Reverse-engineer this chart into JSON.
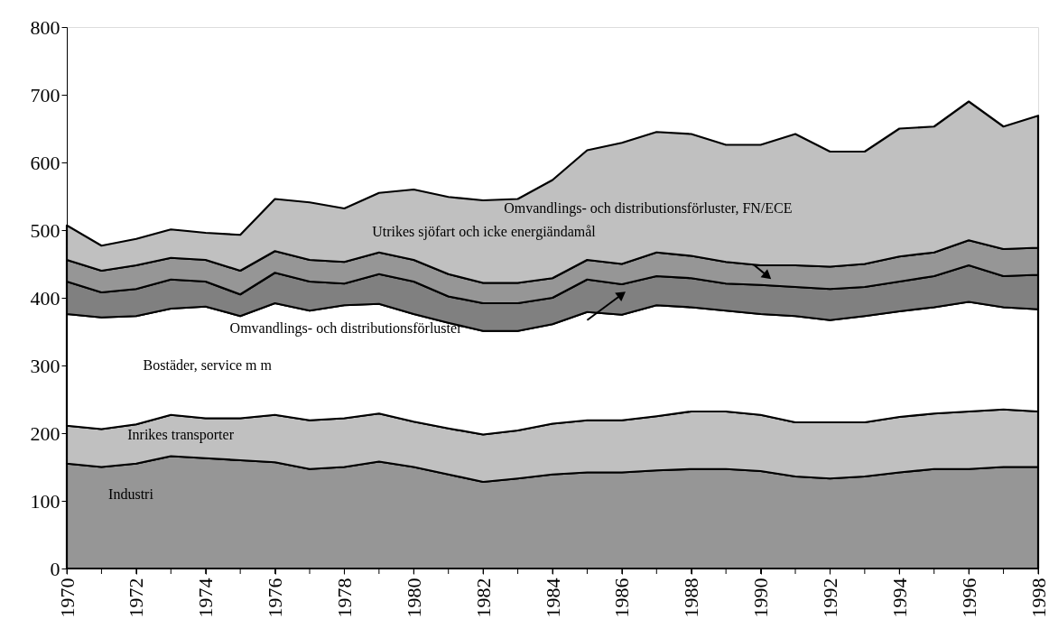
{
  "chart_data": {
    "type": "area",
    "stacked": true,
    "legend": false,
    "grid": false,
    "x": [
      1970,
      1971,
      1972,
      1973,
      1974,
      1975,
      1976,
      1977,
      1978,
      1979,
      1980,
      1981,
      1982,
      1983,
      1984,
      1985,
      1986,
      1987,
      1988,
      1989,
      1990,
      1991,
      1992,
      1993,
      1994,
      1995,
      1996,
      1997,
      1998
    ],
    "xlim": [
      1970,
      1998
    ],
    "xticks": [
      1970,
      {
        "value": 1971,
        "label": null
      },
      1972,
      {
        "value": 1973,
        "label": null
      },
      1974,
      {
        "value": 1975,
        "label": null
      },
      1976,
      {
        "value": 1977,
        "label": null
      },
      1978,
      {
        "value": 1979,
        "label": null
      },
      1980,
      {
        "value": 1981,
        "label": null
      },
      1982,
      {
        "value": 1983,
        "label": null
      },
      1984,
      {
        "value": 1985,
        "label": null
      },
      1986,
      {
        "value": 1987,
        "label": null
      },
      1988,
      {
        "value": 1989,
        "label": null
      },
      1990,
      {
        "value": 1991,
        "label": null
      },
      1992,
      {
        "value": 1993,
        "label": null
      },
      1994,
      {
        "value": 1995,
        "label": null
      },
      1996,
      {
        "value": 1997,
        "label": null
      },
      1998
    ],
    "ylim": [
      0,
      800
    ],
    "yticks": [
      0,
      100,
      200,
      300,
      400,
      500,
      600,
      700,
      800
    ],
    "series": [
      {
        "name": "Industri",
        "color": "#969696",
        "values": [
          155,
          150,
          155,
          166,
          163,
          160,
          157,
          147,
          150,
          158,
          150,
          139,
          128,
          133,
          139,
          142,
          142,
          145,
          147,
          147,
          144,
          136,
          133,
          136,
          142,
          147,
          147,
          150,
          150
        ]
      },
      {
        "name": "Inrikes transporter",
        "color": "#c0c0c0",
        "values": [
          56,
          56,
          58,
          61,
          59,
          62,
          70,
          72,
          72,
          71,
          67,
          68,
          70,
          71,
          75,
          77,
          77,
          80,
          85,
          85,
          83,
          80,
          83,
          80,
          82,
          82,
          85,
          85,
          82
        ]
      },
      {
        "name": "Bostäder, service m m",
        "color": "#ffffff",
        "values": [
          165,
          165,
          160,
          157,
          165,
          151,
          165,
          162,
          167,
          162,
          159,
          156,
          153,
          147,
          147,
          160,
          156,
          164,
          154,
          149,
          149,
          157,
          151,
          157,
          156,
          157,
          162,
          151,
          151
        ]
      },
      {
        "name": "Omvandlings- och distributionsförluster",
        "color": "#808080",
        "values": [
          48,
          37,
          40,
          43,
          37,
          32,
          45,
          43,
          32,
          44,
          48,
          39,
          41,
          41,
          39,
          48,
          45,
          43,
          43,
          40,
          43,
          43,
          46,
          43,
          44,
          46,
          54,
          46,
          51
        ]
      },
      {
        "name": "Utrikes sjöfart och icke energiändamål",
        "color": "#969696",
        "values": [
          32,
          32,
          35,
          32,
          32,
          35,
          32,
          32,
          32,
          32,
          32,
          33,
          30,
          30,
          29,
          29,
          30,
          35,
          33,
          32,
          29,
          32,
          33,
          34,
          37,
          35,
          37,
          40,
          40
        ]
      },
      {
        "name": "Omvandlings- och distributionsförluster, FN/ECE",
        "color": "#c0c0c0",
        "values": [
          51,
          37,
          39,
          42,
          40,
          53,
          77,
          85,
          79,
          88,
          104,
          114,
          122,
          124,
          145,
          162,
          179,
          178,
          180,
          173,
          178,
          194,
          170,
          166,
          189,
          186,
          205,
          181,
          195
        ]
      }
    ]
  }
}
